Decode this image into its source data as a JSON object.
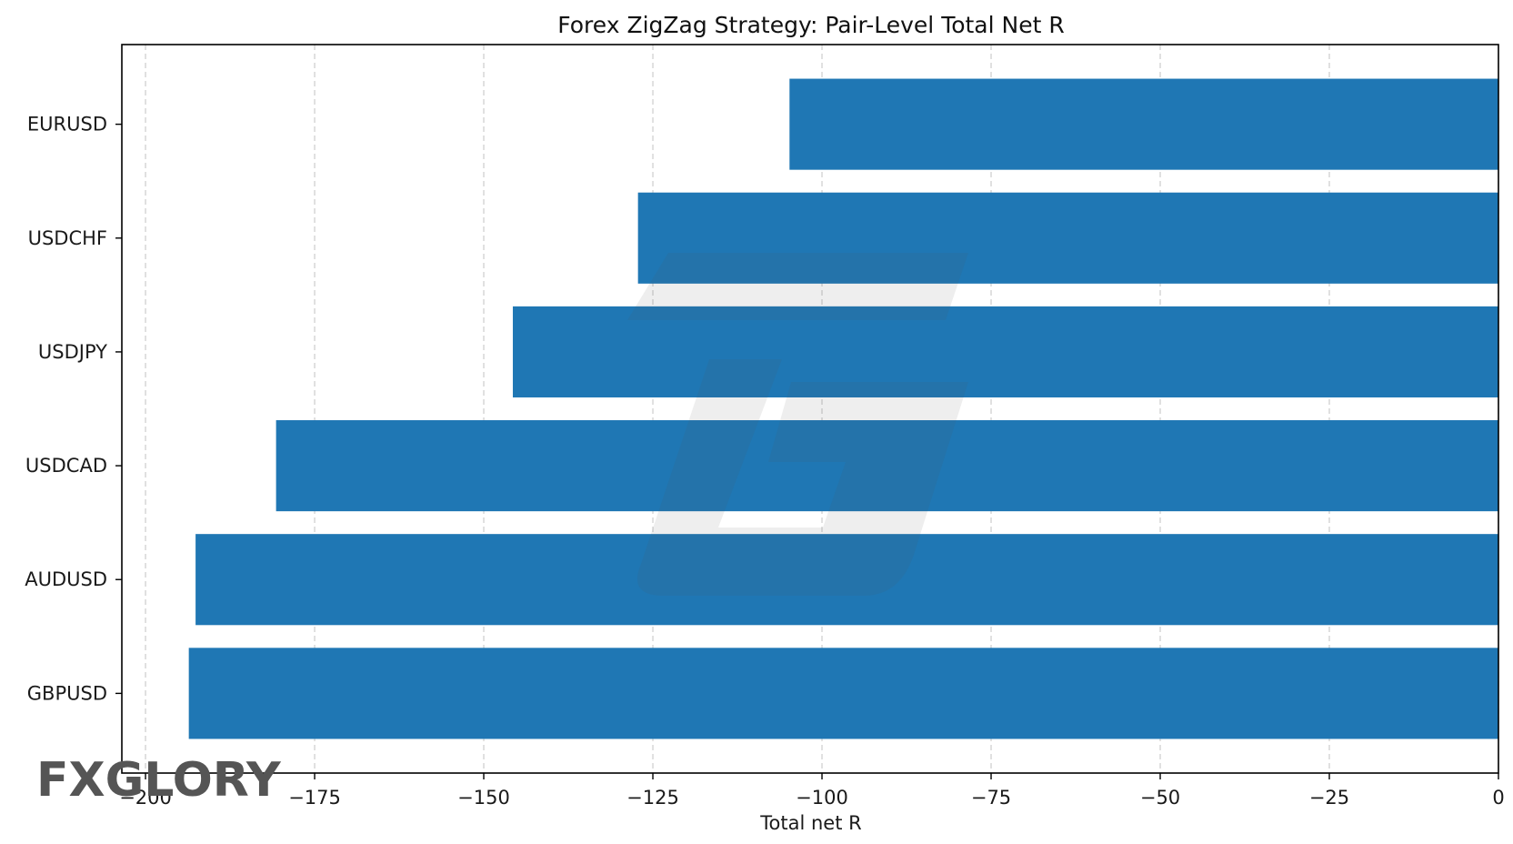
{
  "chart_data": {
    "type": "bar",
    "orientation": "horizontal",
    "title": "Forex ZigZag Strategy: Pair-Level Total Net R",
    "xlabel": "Total net R",
    "ylabel": "",
    "categories": [
      "EURUSD",
      "USDCHF",
      "USDJPY",
      "USDCAD",
      "AUDUSD",
      "GBPUSD"
    ],
    "values": [
      -104.8,
      -127.2,
      -145.7,
      -180.7,
      -192.6,
      -193.6
    ],
    "xlim": [
      -203.5,
      0
    ],
    "xticks": [
      -200,
      -175,
      -150,
      -125,
      -100,
      -75,
      -50,
      -25,
      0
    ],
    "xtick_labels": [
      "−200",
      "−175",
      "−150",
      "−125",
      "−100",
      "−75",
      "−50",
      "−25",
      "0"
    ],
    "grid": "x-dashed",
    "bar_color": "#1f77b4"
  },
  "logo": {
    "text": "FXGLORY",
    "accent_color": "#e8742a"
  }
}
